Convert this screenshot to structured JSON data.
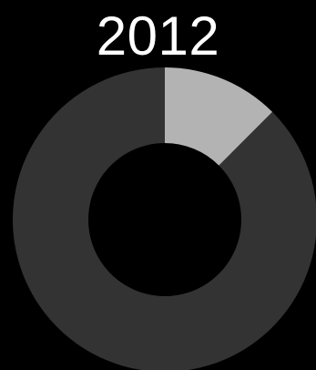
{
  "chart_data": {
    "type": "pie",
    "title": "2012",
    "donut": true,
    "slices": [
      {
        "value": 12.5,
        "color": "#b3b3b3"
      },
      {
        "value": 87.5,
        "color": "#333333"
      }
    ],
    "background": "#000000"
  }
}
